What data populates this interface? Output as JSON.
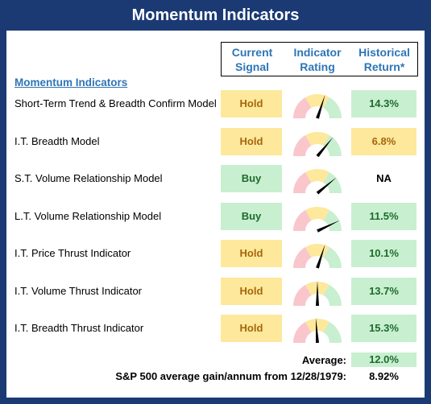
{
  "title": "Momentum Indicators",
  "columns": {
    "current_signal": "Current\nSignal",
    "indicator_rating": "Indicator\nRating",
    "historical_return": "Historical\nReturn*"
  },
  "section_title": "Momentum Indicators",
  "colors": {
    "frame": "#1b3a74",
    "header_blue": "#2e75b6",
    "hold_fill": "#fde89c",
    "hold_text": "#a5670a",
    "buy_fill": "#c8efd0",
    "buy_text": "#1e6b2c",
    "gauge_red": "#f9c6cc",
    "gauge_yellow": "#fde89c",
    "gauge_green": "#c8efd0"
  },
  "rows": [
    {
      "label": "Short-Term Trend & Breadth Confirm Model",
      "signal": "Hold",
      "signal_type": "hold",
      "rating": 0.6,
      "return": "14.3%",
      "return_type": "green"
    },
    {
      "label": "I.T. Breadth Model",
      "signal": "Hold",
      "signal_type": "hold",
      "rating": 0.72,
      "return": "6.8%",
      "return_type": "yellow"
    },
    {
      "label": "S.T. Volume Relationship Model",
      "signal": "Buy",
      "signal_type": "buy",
      "rating": 0.78,
      "return": "NA",
      "return_type": "none"
    },
    {
      "label": "L.T. Volume Relationship Model",
      "signal": "Buy",
      "signal_type": "buy",
      "rating": 0.86,
      "return": "11.5%",
      "return_type": "green"
    },
    {
      "label": "I.T. Price Thrust Indicator",
      "signal": "Hold",
      "signal_type": "hold",
      "rating": 0.6,
      "return": "10.1%",
      "return_type": "green"
    },
    {
      "label": "I.T. Volume Thrust Indicator",
      "signal": "Hold",
      "signal_type": "hold",
      "rating": 0.5,
      "return": "13.7%",
      "return_type": "green"
    },
    {
      "label": "I.T. Breadth Thrust Indicator",
      "signal": "Hold",
      "signal_type": "hold",
      "rating": 0.48,
      "return": "15.3%",
      "return_type": "green"
    }
  ],
  "average": {
    "label": "Average:",
    "value": "12.0%"
  },
  "sp500": {
    "label": "S&P 500 average gain/annum from 12/28/1979:",
    "value": "8.92%"
  }
}
